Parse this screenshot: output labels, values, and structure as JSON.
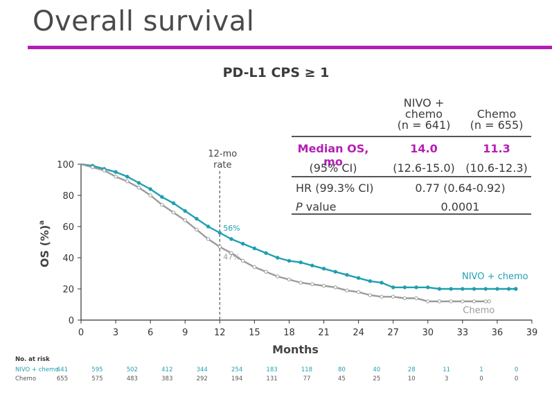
{
  "slide": {
    "title": "Overall survival"
  },
  "chart_data": {
    "type": "line",
    "title": "PD-L1 CPS ≥ 1",
    "xlabel": "Months",
    "ylabel": "OS (%)",
    "ylabel_superscript": "a",
    "xlim": [
      0,
      39
    ],
    "ylim": [
      0,
      100
    ],
    "x_ticks": [
      0,
      3,
      6,
      9,
      12,
      15,
      18,
      21,
      24,
      27,
      30,
      33,
      36,
      39
    ],
    "y_ticks": [
      0,
      20,
      40,
      60,
      80,
      100
    ],
    "reference_line": {
      "x": 12,
      "label_line1": "12-mo",
      "label_line2": "rate"
    },
    "series": [
      {
        "name": "NIVO + chemo",
        "color": "#1f9fb0",
        "label_at_12mo": "56%",
        "points": [
          [
            0,
            100
          ],
          [
            1,
            99
          ],
          [
            2,
            97
          ],
          [
            3,
            95
          ],
          [
            4,
            92
          ],
          [
            5,
            88
          ],
          [
            6,
            84
          ],
          [
            7,
            79
          ],
          [
            8,
            75
          ],
          [
            9,
            70
          ],
          [
            10,
            65
          ],
          [
            11,
            60
          ],
          [
            12,
            56
          ],
          [
            13,
            52
          ],
          [
            14,
            49
          ],
          [
            15,
            46
          ],
          [
            16,
            43
          ],
          [
            17,
            40
          ],
          [
            18,
            38
          ],
          [
            19,
            37
          ],
          [
            20,
            35
          ],
          [
            21,
            33
          ],
          [
            22,
            31
          ],
          [
            23,
            29
          ],
          [
            24,
            27
          ],
          [
            25,
            25
          ],
          [
            26,
            24
          ],
          [
            27,
            21
          ],
          [
            28,
            21
          ],
          [
            29,
            21
          ],
          [
            30,
            21
          ],
          [
            31,
            20
          ],
          [
            32,
            20
          ],
          [
            33,
            20
          ],
          [
            34,
            20
          ],
          [
            35,
            20
          ],
          [
            36,
            20
          ],
          [
            37,
            20
          ],
          [
            37.6,
            20
          ]
        ]
      },
      {
        "name": "Chemo",
        "color": "#9a9a9a",
        "label_at_12mo": "47%",
        "points": [
          [
            0,
            100
          ],
          [
            1,
            98
          ],
          [
            2,
            96
          ],
          [
            3,
            92
          ],
          [
            4,
            89
          ],
          [
            5,
            85
          ],
          [
            6,
            80
          ],
          [
            7,
            74
          ],
          [
            8,
            69
          ],
          [
            9,
            64
          ],
          [
            10,
            58
          ],
          [
            11,
            52
          ],
          [
            12,
            47
          ],
          [
            13,
            43
          ],
          [
            14,
            38
          ],
          [
            15,
            34
          ],
          [
            16,
            31
          ],
          [
            17,
            28
          ],
          [
            18,
            26
          ],
          [
            19,
            24
          ],
          [
            20,
            23
          ],
          [
            21,
            22
          ],
          [
            22,
            21
          ],
          [
            23,
            19
          ],
          [
            24,
            18
          ],
          [
            25,
            16
          ],
          [
            26,
            15
          ],
          [
            27,
            15
          ],
          [
            28,
            14
          ],
          [
            29,
            14
          ],
          [
            30,
            12
          ],
          [
            31,
            12
          ],
          [
            32,
            12
          ],
          [
            33,
            12
          ],
          [
            34,
            12
          ],
          [
            35,
            12
          ],
          [
            35.3,
            12
          ]
        ]
      }
    ],
    "summary_table": {
      "col1_header": [
        "NIVO +",
        "chemo",
        "(n = 641)"
      ],
      "col2_header": [
        "Chemo",
        "(n = 655)"
      ],
      "rows": [
        {
          "label": "Median OS, mo",
          "v1": "14.0",
          "v2": "11.3",
          "highlight": true
        },
        {
          "label": "(95% CI)",
          "v1": "(12.6-15.0)",
          "v2": "(10.6-12.3)"
        },
        {
          "label": "HR (99.3% CI)",
          "merged": "0.77 (0.64-0.92)"
        },
        {
          "label_italic": "P",
          "label": " value",
          "merged": "0.0001"
        }
      ]
    },
    "at_risk": {
      "header": "No. at risk",
      "times": [
        0,
        3,
        6,
        9,
        12,
        15,
        18,
        21,
        24,
        27,
        30,
        33,
        36,
        39
      ],
      "rows": [
        {
          "label": "NIVO + chemo",
          "color": "#1f9fb0",
          "values": [
            "641",
            "595",
            "502",
            "412",
            "344",
            "254",
            "183",
            "118",
            "80",
            "40",
            "28",
            "11",
            "1",
            "0"
          ]
        },
        {
          "label": "Chemo",
          "color": "#555555",
          "values": [
            "655",
            "575",
            "483",
            "383",
            "292",
            "194",
            "131",
            "77",
            "45",
            "25",
            "10",
            "3",
            "0",
            "0"
          ]
        }
      ]
    }
  },
  "colors": {
    "accent": "#b41eb4",
    "median_label": "#b41eb4"
  }
}
